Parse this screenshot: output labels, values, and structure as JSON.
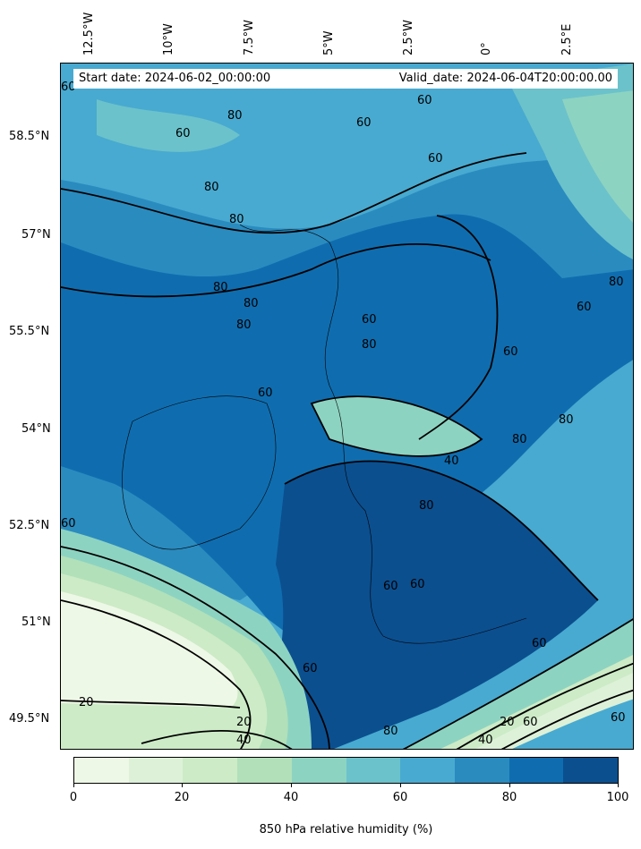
{
  "header": {
    "start_date": "Start date: 2024-06-02_00:00:00",
    "valid_date": "Valid_date: 2024-06-04T20:00:00.00"
  },
  "axes": {
    "lon_labels": [
      "12.5°W",
      "10°W",
      "7.5°W",
      "5°W",
      "2.5°W",
      "0°",
      "2.5°E"
    ],
    "lat_labels": [
      "58.5°N",
      "57°N",
      "55.5°N",
      "54°N",
      "52.5°N",
      "51°N",
      "49.5°N"
    ]
  },
  "colorbar": {
    "label": "850 hPa relative humidity (%)",
    "ticks": [
      "0",
      "20",
      "40",
      "60",
      "80",
      "100"
    ],
    "colors": [
      "#eef8e6",
      "#ddf1d8",
      "#ccebc6",
      "#b1e0b9",
      "#8dd3c1",
      "#6bc2cb",
      "#48aad0",
      "#2a8bbf",
      "#0f6daf",
      "#0b4f8f"
    ]
  },
  "contour_labels": [
    "60",
    "80",
    "60",
    "60",
    "80",
    "80",
    "80",
    "80",
    "60",
    "60",
    "80",
    "60",
    "60",
    "80",
    "60",
    "40",
    "80",
    "80",
    "80",
    "60",
    "60",
    "60",
    "60",
    "20",
    "20",
    "40",
    "80",
    "40",
    "20",
    "60",
    "60",
    "80",
    "60",
    "60"
  ]
}
